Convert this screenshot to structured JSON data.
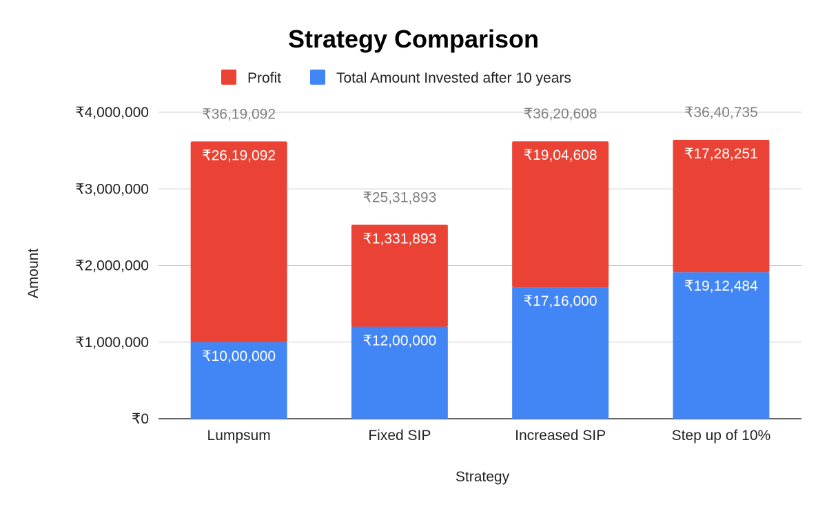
{
  "chart_data": {
    "type": "bar",
    "stacked": true,
    "title": "Strategy Comparison",
    "xlabel": "Strategy",
    "ylabel": "Amount",
    "ylim": [
      0,
      4000000
    ],
    "yticks": [
      0,
      1000000,
      2000000,
      3000000,
      4000000
    ],
    "ytick_labels": [
      "₹0",
      "₹1,000,000",
      "₹2,000,000",
      "₹3,000,000",
      "₹4,000,000"
    ],
    "grid": true,
    "legend_position": "top",
    "categories": [
      "Lumpsum",
      "Fixed SIP",
      "Increased SIP",
      "Step up of 10%"
    ],
    "series": [
      {
        "name": "Total Amount Invested after 10 years",
        "color": "#4285F4",
        "values": [
          1000000,
          1200000,
          1716000,
          1912484
        ],
        "labels": [
          "₹10,00,000",
          "₹12,00,000",
          "₹17,16,000",
          "₹19,12,484"
        ]
      },
      {
        "name": "Profit",
        "color": "#EA4335",
        "values": [
          2619092,
          1331893,
          1904608,
          1728251
        ],
        "labels": [
          "₹26,19,092",
          "₹1,331,893",
          "₹19,04,608",
          "₹17,28,251"
        ]
      }
    ],
    "legend_order": [
      "Profit",
      "Total Amount Invested after 10 years"
    ],
    "totals": [
      3619092,
      2531893,
      3620608,
      3640735
    ],
    "total_labels": [
      "₹36,19,092",
      "₹25,31,893",
      "₹36,20,608",
      "₹36,40,735"
    ],
    "total_label_color": "#7f7f7f",
    "gridline_color": "#cccccc",
    "axis_line_color": "#333333"
  }
}
